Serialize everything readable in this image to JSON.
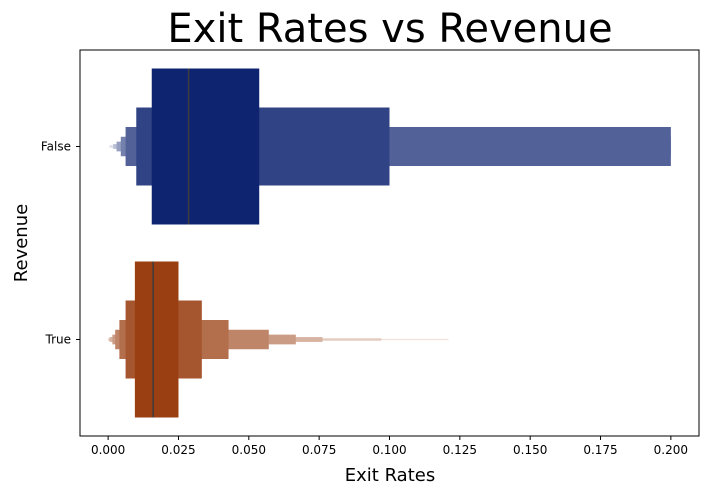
{
  "chart_data": {
    "type": "boxen",
    "title": "Exit Rates vs Revenue",
    "xlabel": "Exit Rates",
    "ylabel": "Revenue",
    "xlim": [
      -0.01,
      0.21
    ],
    "xticks": [
      "0.000",
      "0.025",
      "0.050",
      "0.075",
      "0.100",
      "0.125",
      "0.150",
      "0.175",
      "0.200"
    ],
    "categories": [
      "False",
      "True"
    ],
    "grid": false,
    "series": [
      {
        "category": "False",
        "median": 0.0286,
        "color": "#0e2470",
        "levels": [
          {
            "lo": 0.0155,
            "hi": 0.0537
          },
          {
            "lo": 0.01,
            "hi": 0.1
          },
          {
            "lo": 0.0062,
            "hi": 0.2
          },
          {
            "lo": 0.0045,
            "hi": 0.2
          },
          {
            "lo": 0.003,
            "hi": 0.2
          },
          {
            "lo": 0.0018,
            "hi": 0.2
          },
          {
            "lo": 0.0005,
            "hi": 0.2
          }
        ]
      },
      {
        "category": "True",
        "median": 0.016,
        "color": "#9a3f12",
        "levels": [
          {
            "lo": 0.0095,
            "hi": 0.025
          },
          {
            "lo": 0.0062,
            "hi": 0.0333
          },
          {
            "lo": 0.004,
            "hi": 0.0428
          },
          {
            "lo": 0.0025,
            "hi": 0.0571
          },
          {
            "lo": 0.0015,
            "hi": 0.0667
          },
          {
            "lo": 0.0005,
            "hi": 0.0762
          },
          {
            "lo": 0.0,
            "hi": 0.0971
          },
          {
            "lo": 0.0,
            "hi": 0.121
          }
        ]
      }
    ]
  }
}
